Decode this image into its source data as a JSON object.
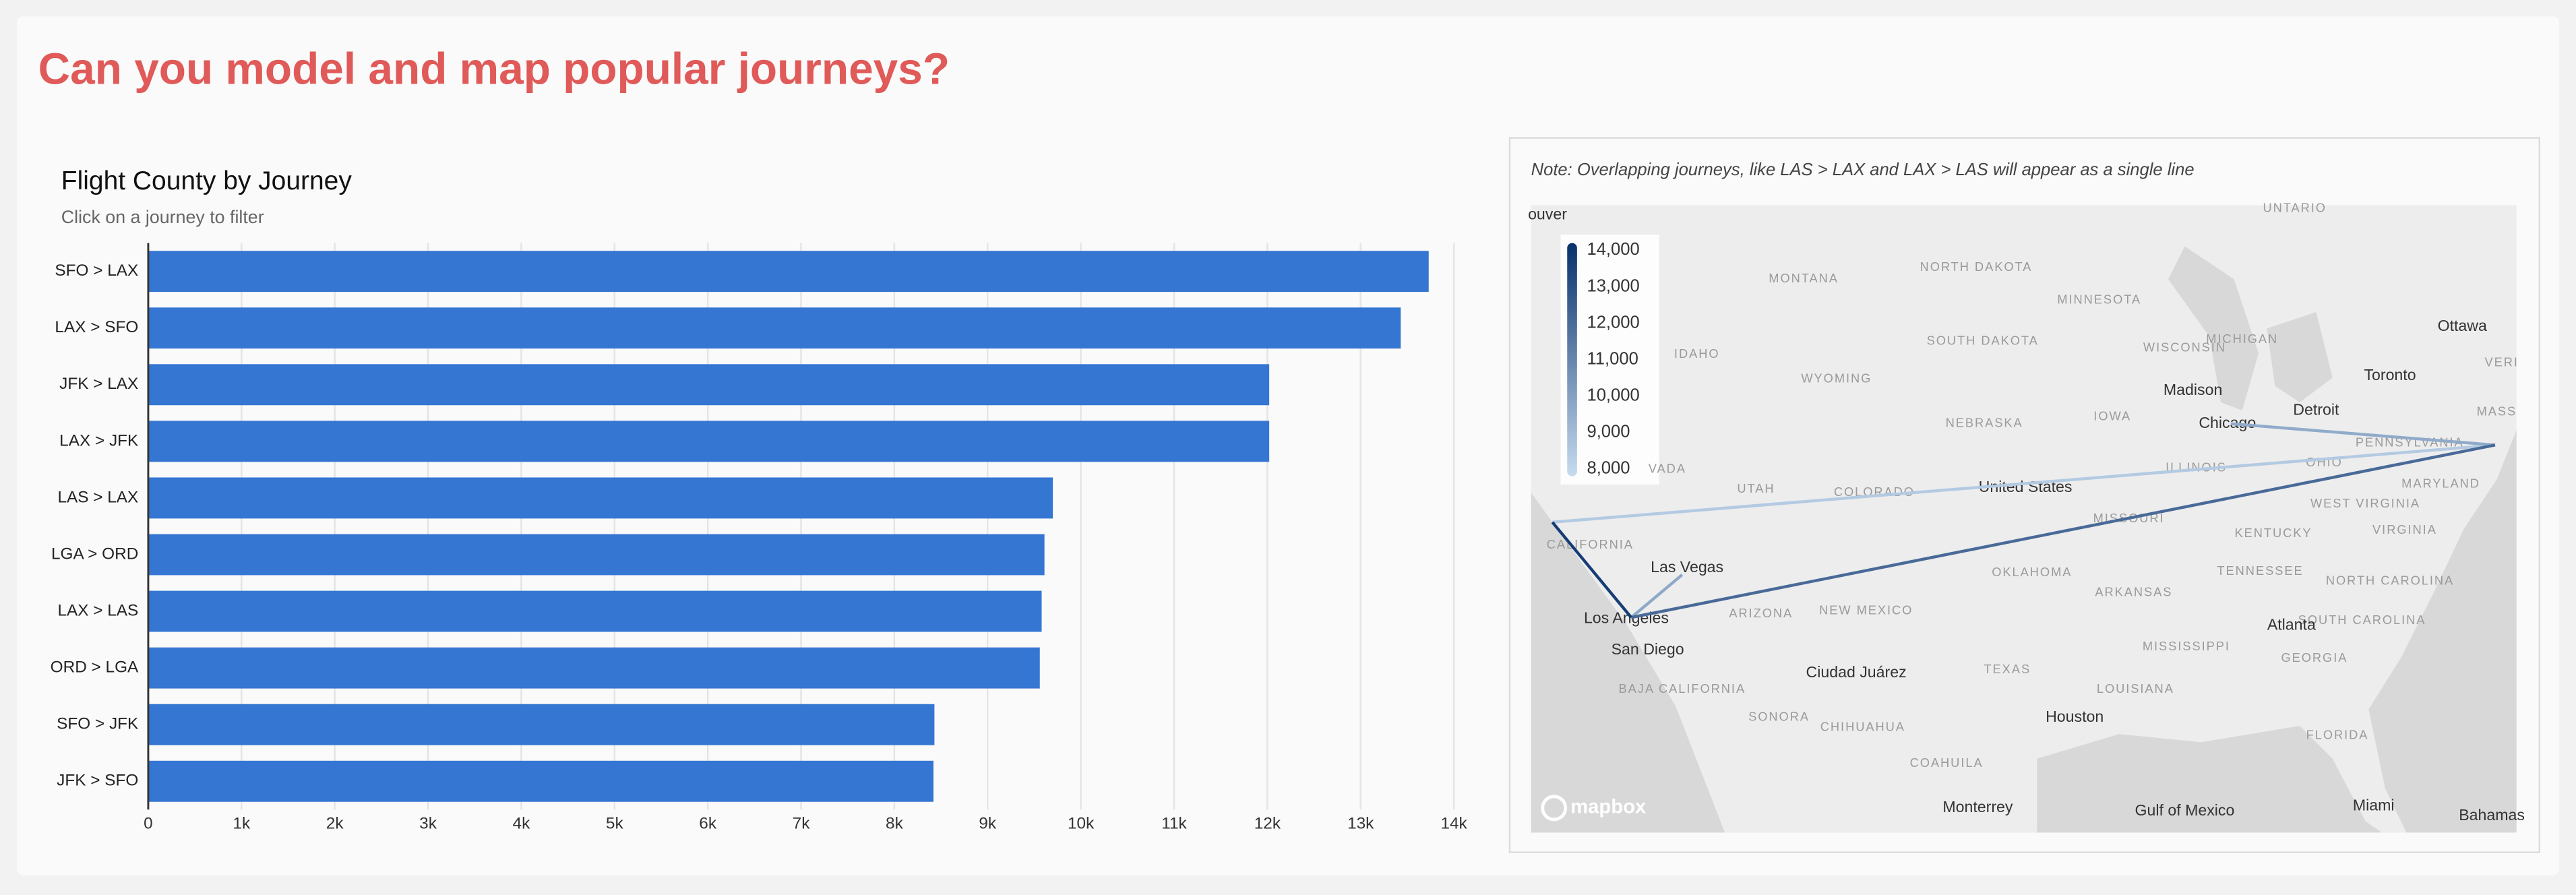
{
  "header": {
    "title": "Can you model and map popular journeys?"
  },
  "chart_data": {
    "type": "bar",
    "orientation": "horizontal",
    "title": "Flight County by Journey",
    "subtitle": "Click on a journey to filter",
    "categories": [
      "SFO > LAX",
      "LAX > SFO",
      "JFK > LAX",
      "LAX > JFK",
      "LAS > LAX",
      "LGA > ORD",
      "LAX > LAS",
      "ORD > LGA",
      "SFO > JFK",
      "JFK > SFO"
    ],
    "values": [
      13730,
      13430,
      12020,
      12020,
      9700,
      9610,
      9580,
      9560,
      8430,
      8420
    ],
    "color": "#3476d2",
    "xlim": [
      0,
      14000
    ],
    "xticks": [
      0,
      {
        "value": 1000,
        "label": "1k"
      },
      {
        "value": 2000,
        "label": "2k"
      },
      {
        "value": 3000,
        "label": "3k"
      },
      {
        "value": 4000,
        "label": "4k"
      },
      {
        "value": 5000,
        "label": "5k"
      },
      {
        "value": 6000,
        "label": "6k"
      },
      {
        "value": 7000,
        "label": "7k"
      },
      {
        "value": 8000,
        "label": "8k"
      },
      {
        "value": 9000,
        "label": "9k"
      },
      {
        "value": 10000,
        "label": "10k"
      },
      {
        "value": 11000,
        "label": "11k"
      },
      {
        "value": 12000,
        "label": "12k"
      },
      {
        "value": 13000,
        "label": "13k"
      },
      {
        "value": 14000,
        "label": "14k"
      }
    ],
    "grid": true
  },
  "map": {
    "note": "Note: Overlapping journeys, like LAS > LAX and LAX > LAS will appear as a single line",
    "legend_lim": [
      7800,
      14200
    ],
    "legend_ticks": [
      {
        "value": 8000,
        "label": "8,000"
      },
      {
        "value": 9000,
        "label": "9,000"
      },
      {
        "value": 10000,
        "label": "10,000"
      },
      {
        "value": 11000,
        "label": "11,000"
      },
      {
        "value": 12000,
        "label": "12,000"
      },
      {
        "value": 13000,
        "label": "13,000"
      },
      {
        "value": 14000,
        "label": "14,000"
      }
    ],
    "color_low": "#c6dbef",
    "color_high": "#08306b",
    "places": [
      "MONTANA",
      "NORTH DAKOTA",
      "SOUTH DAKOTA",
      "MINNESOTA",
      "WISCONSIN",
      "MICHIGAN",
      "IDAHO",
      "WYOMING",
      "NEBRASKA",
      "IOWA",
      "Madison",
      "Chicago",
      "Detroit",
      "Toronto",
      "Ottawa",
      "PENNSYLVANIA",
      "OHIO",
      "ILLINOIS",
      "UTAH",
      "COLORADO",
      "United States",
      "VADA",
      "CALIFORNIA",
      "MISSOURI",
      "KENTUCKY",
      "WEST VIRGINIA",
      "VIRGINIA",
      "MARYLAND",
      "Las Vegas",
      "Los Angeles",
      "San Diego",
      "ARIZONA",
      "NEW MEXICO",
      "OKLAHOMA",
      "ARKANSAS",
      "TENNESSEE",
      "NORTH CAROLINA",
      "SOUTH CAROLINA",
      "Atlanta",
      "GEORGIA",
      "MISSISSIPPI",
      "TEXAS",
      "LOUISIANA",
      "Ciudad Juárez",
      "Houston",
      "SONORA",
      "CHIHUAHUA",
      "COAHUILA",
      "BAJA CALIFORNIA",
      "Monterrey",
      "Gulf of Mexico",
      "FLORIDA",
      "Miami",
      "Bahamas",
      "UNTARIO",
      "ouver",
      "MASS",
      "VERI"
    ],
    "attribution": "mapbox"
  }
}
